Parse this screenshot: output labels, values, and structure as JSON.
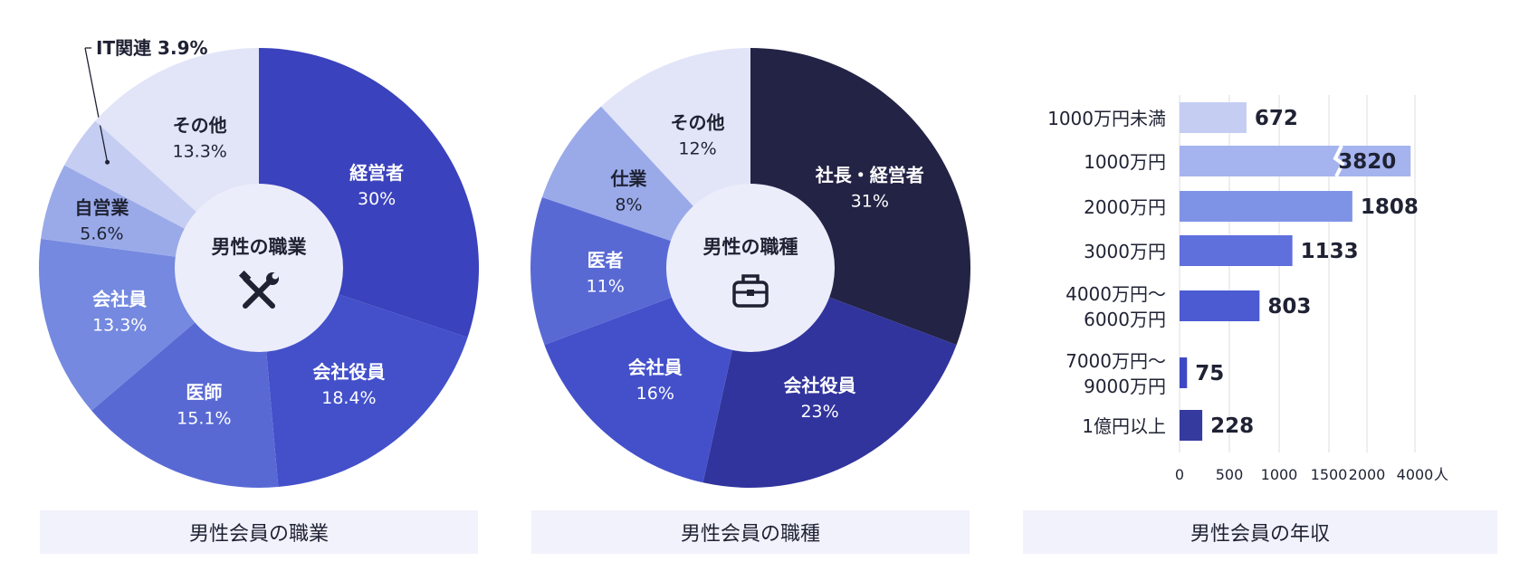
{
  "captions": {
    "occupation": "男性会員の職業",
    "jobtype": "男性会員の職種",
    "income": "男性会員の年収"
  },
  "chart_data": [
    {
      "type": "pie",
      "title": "男性の職業",
      "center_icon": "tools-icon",
      "caption": "男性会員の職業",
      "slices": [
        {
          "label": "経営者",
          "value": 30,
          "value_label": "30%",
          "color": "#3b42bd"
        },
        {
          "label": "会社役員",
          "value": 18.4,
          "value_label": "18.4%",
          "color": "#4350ca"
        },
        {
          "label": "医師",
          "value": 15.1,
          "value_label": "15.1%",
          "color": "#5969d4"
        },
        {
          "label": "会社員",
          "value": 13.3,
          "value_label": "13.3%",
          "color": "#7489df"
        },
        {
          "label": "自営業",
          "value": 5.6,
          "value_label": "5.6%",
          "color": "#9aaae9"
        },
        {
          "label": "IT関連",
          "value": 3.9,
          "value_label": "3.9%",
          "color": "#c5cdf2"
        },
        {
          "label": "その他",
          "value": 13.3,
          "value_label": "13.3%",
          "color": "#e2e5f8"
        }
      ]
    },
    {
      "type": "pie",
      "title": "男性の職種",
      "center_icon": "briefcase-icon",
      "caption": "男性会員の職種",
      "slices": [
        {
          "label": "社長・経営者",
          "value": 31,
          "value_label": "31%",
          "color": "#232346"
        },
        {
          "label": "会社役員",
          "value": 23,
          "value_label": "23%",
          "color": "#31349c"
        },
        {
          "label": "会社員",
          "value": 16,
          "value_label": "16%",
          "color": "#4350ca"
        },
        {
          "label": "医者",
          "value": 11,
          "value_label": "11%",
          "color": "#5969d4"
        },
        {
          "label": "仕業",
          "value": 8,
          "value_label": "8%",
          "color": "#9aaae9"
        },
        {
          "label": "その他",
          "value": 12,
          "value_label": "12%",
          "color": "#e2e5f8"
        }
      ]
    },
    {
      "type": "bar",
      "orientation": "horizontal",
      "caption": "男性会員の年収",
      "categories": [
        "1000万円未満",
        "1000万円",
        "2000万円",
        "3000万円",
        "4000万円〜\n6000万円",
        "7000万円〜\n9000万円",
        "1億円以上"
      ],
      "values": [
        672,
        3820,
        1808,
        1133,
        803,
        75,
        228
      ],
      "colors": [
        "#c5cdf2",
        "#a5b4ef",
        "#7f93e6",
        "#5f6fdc",
        "#4d5bd2",
        "#3f48c4",
        "#353a9f"
      ],
      "xlim": [
        0,
        4000
      ],
      "x_axis_break": true,
      "xticks": [
        "0",
        "500",
        "1000",
        "1500",
        "2000",
        "4000"
      ],
      "xunit": "人",
      "grid": true
    }
  ]
}
